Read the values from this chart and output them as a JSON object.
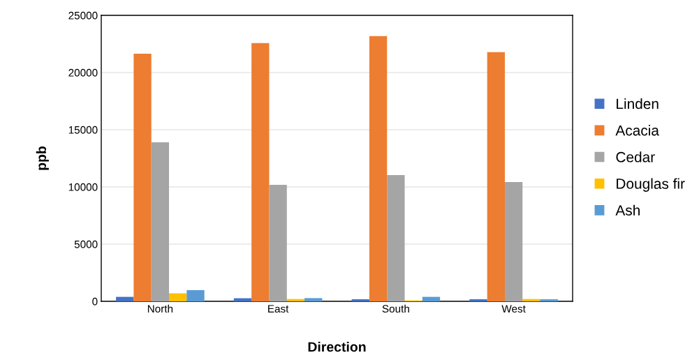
{
  "chart_data": {
    "type": "bar",
    "xlabel": "Direction",
    "ylabel": "ppb",
    "categories": [
      "North",
      "East",
      "South",
      "West"
    ],
    "series": [
      {
        "name": "Linden",
        "color": "#4472c4",
        "values": [
          390,
          270,
          180,
          180
        ]
      },
      {
        "name": "Acacia",
        "color": "#ed7d31",
        "values": [
          21650,
          22580,
          23190,
          21780
        ]
      },
      {
        "name": "Cedar",
        "color": "#a5a5a5",
        "values": [
          13900,
          10180,
          11040,
          10430
        ]
      },
      {
        "name": "Douglas fir",
        "color": "#ffc000",
        "values": [
          700,
          200,
          80,
          200
        ]
      },
      {
        "name": "Ash",
        "color": "#5b9bd5",
        "values": [
          980,
          280,
          390,
          180
        ]
      }
    ],
    "ylim": [
      0,
      25000
    ],
    "yticks": [
      0,
      5000,
      10000,
      15000,
      20000,
      25000
    ],
    "grid": "y",
    "legend": "right"
  }
}
